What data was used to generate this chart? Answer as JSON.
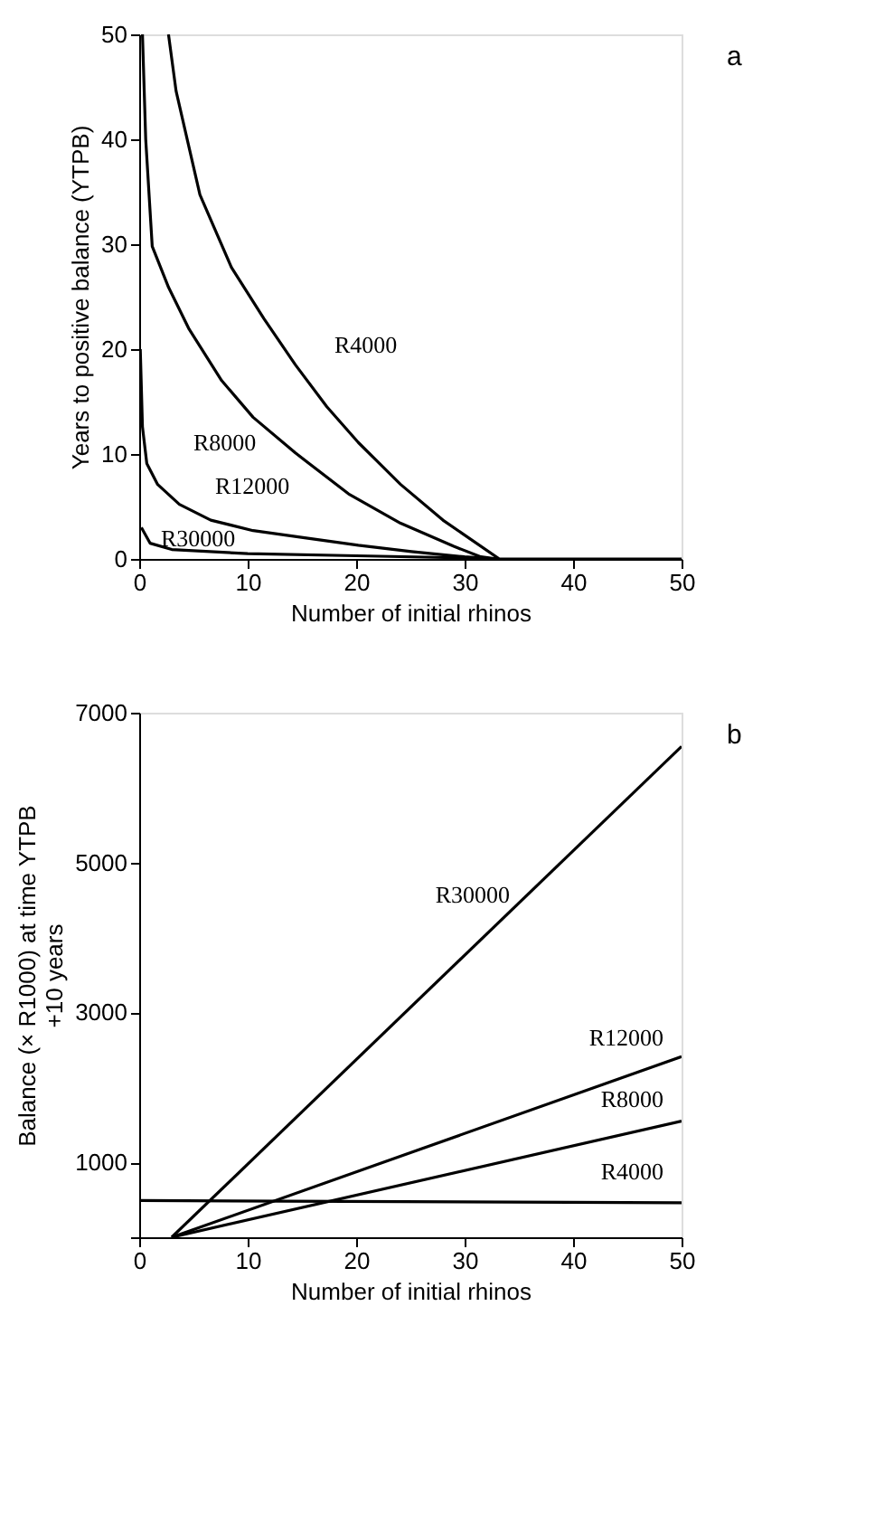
{
  "chart_data": [
    {
      "type": "line",
      "xlabel": "Number of initial rhinos",
      "ylabel": "Years to positive balance (YTPB)",
      "xlim": [
        0,
        50
      ],
      "ylim": [
        0,
        50
      ],
      "xticks": [
        0,
        10,
        20,
        30,
        40,
        50
      ],
      "yticks": [
        0,
        10,
        20,
        30,
        40,
        50
      ],
      "grid": false,
      "marker": "none",
      "line_style": "solid",
      "series": [
        {
          "name": "R4000",
          "color": "#000000",
          "x": [
            2.7,
            3.4,
            5.6,
            8.5,
            11.5,
            14.4,
            17.3,
            20.2,
            24.1,
            28,
            33.2,
            50
          ],
          "values": [
            50,
            44.6,
            34.7,
            27.8,
            22.9,
            18.5,
            14.5,
            11.1,
            7.1,
            3.7,
            0,
            0
          ]
        },
        {
          "name": "R8000",
          "color": "#000000",
          "x": [
            0.3,
            0.6,
            1.2,
            2.7,
            4.6,
            7.6,
            10.5,
            14.4,
            19.3,
            24.1,
            29,
            31.5,
            33
          ],
          "values": [
            50,
            40,
            29.8,
            25.9,
            21.9,
            17,
            13.5,
            10.1,
            6.2,
            3.4,
            1.2,
            0.2,
            0
          ]
        },
        {
          "name": "R12000",
          "color": "#000000",
          "x": [
            0.1,
            0.3,
            0.7,
            1.7,
            3.7,
            6.6,
            10.5,
            15.4,
            20.2,
            25.1,
            30,
            33
          ],
          "values": [
            20,
            12.6,
            9.1,
            7.1,
            5.2,
            3.7,
            2.7,
            2,
            1.3,
            0.7,
            0.2,
            0
          ]
        },
        {
          "name": "R30000",
          "color": "#000000",
          "x": [
            0.2,
            1,
            3,
            10,
            20,
            30,
            33
          ],
          "values": [
            3,
            1.5,
            0.9,
            0.5,
            0.3,
            0.1,
            0
          ]
        }
      ],
      "annotations": [
        "a"
      ]
    },
    {
      "type": "line",
      "xlabel": "Number of initial rhinos",
      "ylabel": "Balance (× R1000) at time YTPB\n+10 years",
      "xlim": [
        0,
        50
      ],
      "ylim": [
        0,
        7000
      ],
      "xticks": [
        0,
        10,
        20,
        30,
        40,
        50
      ],
      "yticks": [
        {
          "value": 0,
          "label": null
        },
        1000,
        3000,
        5000,
        7000
      ],
      "grid": false,
      "marker": "none",
      "line_style": "solid",
      "series": [
        {
          "name": "R30000",
          "color": "#000000",
          "x": [
            3,
            50
          ],
          "values": [
            0,
            6550
          ]
        },
        {
          "name": "R12000",
          "color": "#000000",
          "x": [
            3,
            50
          ],
          "values": [
            0,
            2410
          ]
        },
        {
          "name": "R8000",
          "color": "#000000",
          "x": [
            3,
            50
          ],
          "values": [
            0,
            1550
          ]
        },
        {
          "name": "R4000",
          "color": "#000000",
          "x": [
            0,
            50
          ],
          "values": [
            490,
            460
          ]
        }
      ],
      "annotations": [
        "b"
      ]
    }
  ]
}
